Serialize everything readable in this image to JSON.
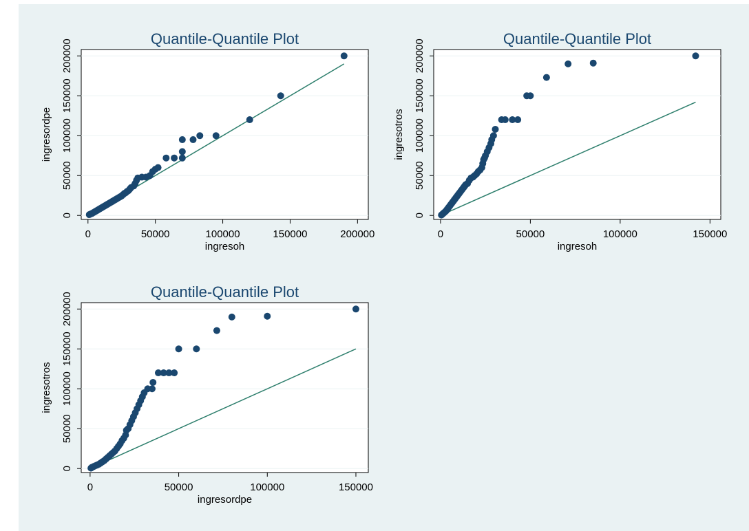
{
  "colors": {
    "background": "#eaf2f3",
    "plot_area": "#ffffff",
    "marker": "#1a476f",
    "reference_line": "#2e7f6d",
    "title": "#1a476f"
  },
  "chart_data": [
    {
      "type": "scatter",
      "title": "Quantile-Quantile Plot",
      "xlabel": "ingresoh",
      "ylabel": "ingresordpe",
      "xticks": [
        0,
        50000,
        100000,
        150000,
        200000
      ],
      "yticks": [
        0,
        50000,
        100000,
        150000,
        200000
      ],
      "xticklabels": [
        "0",
        "50000",
        "100000",
        "150000",
        "200000"
      ],
      "yticklabels": [
        "0",
        "50000",
        "100000",
        "150000",
        "200000"
      ],
      "xlim": [
        -5000,
        208000
      ],
      "ylim": [
        -5000,
        208000
      ],
      "grid": true,
      "reference_line": [
        [
          0,
          0
        ],
        [
          190000,
          190000
        ]
      ],
      "points": [
        [
          1000,
          1000
        ],
        [
          2000,
          1800
        ],
        [
          3000,
          2500
        ],
        [
          4000,
          3500
        ],
        [
          5000,
          4500
        ],
        [
          6000,
          5500
        ],
        [
          7000,
          6500
        ],
        [
          8000,
          7500
        ],
        [
          9000,
          8500
        ],
        [
          10000,
          9500
        ],
        [
          11000,
          10500
        ],
        [
          12000,
          11500
        ],
        [
          13000,
          12500
        ],
        [
          14000,
          13500
        ],
        [
          15000,
          14500
        ],
        [
          16000,
          15500
        ],
        [
          17000,
          16500
        ],
        [
          18000,
          17500
        ],
        [
          19000,
          18500
        ],
        [
          20000,
          19500
        ],
        [
          21000,
          20500
        ],
        [
          22000,
          21500
        ],
        [
          23000,
          22500
        ],
        [
          24000,
          23500
        ],
        [
          25000,
          24500
        ],
        [
          26000,
          26000
        ],
        [
          27000,
          27500
        ],
        [
          28000,
          28500
        ],
        [
          29000,
          30000
        ],
        [
          30000,
          31000
        ],
        [
          31000,
          33000
        ],
        [
          32000,
          35000
        ],
        [
          34000,
          37000
        ],
        [
          35000,
          40000
        ],
        [
          36000,
          44000
        ],
        [
          37000,
          47000
        ],
        [
          40000,
          48000
        ],
        [
          43000,
          48000
        ],
        [
          46000,
          50000
        ],
        [
          48000,
          55000
        ],
        [
          50000,
          58000
        ],
        [
          52000,
          60000
        ],
        [
          58000,
          72000
        ],
        [
          64000,
          72000
        ],
        [
          70000,
          72000
        ],
        [
          70000,
          80000
        ],
        [
          70000,
          95000
        ],
        [
          78000,
          95000
        ],
        [
          83000,
          100000
        ],
        [
          95000,
          100000
        ],
        [
          120000,
          120000
        ],
        [
          143000,
          150000
        ],
        [
          190000,
          200000
        ]
      ]
    },
    {
      "type": "scatter",
      "title": "Quantile-Quantile Plot",
      "xlabel": "ingresoh",
      "ylabel": "ingresotros",
      "xticks": [
        0,
        50000,
        100000,
        150000
      ],
      "yticks": [
        0,
        50000,
        100000,
        150000,
        200000
      ],
      "xticklabels": [
        "0",
        "50000",
        "100000",
        "150000"
      ],
      "yticklabels": [
        "0",
        "50000",
        "100000",
        "150000",
        "200000"
      ],
      "xlim": [
        -3800,
        156000
      ],
      "ylim": [
        -5000,
        208000
      ],
      "grid": true,
      "reference_line": [
        [
          0,
          0
        ],
        [
          142000,
          142000
        ]
      ],
      "points": [
        [
          500,
          500
        ],
        [
          1000,
          1500
        ],
        [
          1500,
          2500
        ],
        [
          2000,
          3500
        ],
        [
          2500,
          4500
        ],
        [
          3000,
          5500
        ],
        [
          3500,
          7000
        ],
        [
          4000,
          8500
        ],
        [
          4500,
          10000
        ],
        [
          5000,
          11500
        ],
        [
          5500,
          13000
        ],
        [
          6000,
          14500
        ],
        [
          6500,
          16000
        ],
        [
          7000,
          17500
        ],
        [
          7500,
          19000
        ],
        [
          8000,
          20500
        ],
        [
          8500,
          22000
        ],
        [
          9000,
          23500
        ],
        [
          9500,
          25000
        ],
        [
          10000,
          26500
        ],
        [
          10500,
          28000
        ],
        [
          11000,
          29500
        ],
        [
          11500,
          31000
        ],
        [
          12000,
          32500
        ],
        [
          12500,
          34000
        ],
        [
          13000,
          35500
        ],
        [
          13500,
          37000
        ],
        [
          14000,
          38500
        ],
        [
          15000,
          40000
        ],
        [
          16000,
          44000
        ],
        [
          17000,
          47000
        ],
        [
          18000,
          48000
        ],
        [
          19000,
          50000
        ],
        [
          20000,
          52000
        ],
        [
          21000,
          55000
        ],
        [
          22000,
          57000
        ],
        [
          23000,
          60000
        ],
        [
          23500,
          65000
        ],
        [
          24000,
          70000
        ],
        [
          24500,
          72000
        ],
        [
          25000,
          75000
        ],
        [
          26000,
          80000
        ],
        [
          27000,
          85000
        ],
        [
          28000,
          90000
        ],
        [
          28500,
          95000
        ],
        [
          29500,
          100000
        ],
        [
          30500,
          108000
        ],
        [
          34000,
          120000
        ],
        [
          36000,
          120000
        ],
        [
          40000,
          120000
        ],
        [
          43000,
          120000
        ],
        [
          48000,
          150000
        ],
        [
          50000,
          150000
        ],
        [
          59000,
          173000
        ],
        [
          71000,
          190000
        ],
        [
          85000,
          191000
        ],
        [
          142000,
          200000
        ]
      ]
    },
    {
      "type": "scatter",
      "title": "Quantile-Quantile Plot",
      "xlabel": "ingresordpe",
      "ylabel": "ingresotros",
      "xticks": [
        0,
        50000,
        100000,
        150000
      ],
      "yticks": [
        0,
        50000,
        100000,
        150000,
        200000
      ],
      "xticklabels": [
        "0",
        "50000",
        "100000",
        "150000"
      ],
      "yticklabels": [
        "0",
        "50000",
        "100000",
        "150000",
        "200000"
      ],
      "xlim": [
        -5000,
        157000
      ],
      "ylim": [
        -5000,
        208000
      ],
      "grid": true,
      "reference_line": [
        [
          0,
          0
        ],
        [
          150000,
          150000
        ]
      ],
      "points": [
        [
          500,
          500
        ],
        [
          1000,
          1500
        ],
        [
          2000,
          2500
        ],
        [
          3000,
          3500
        ],
        [
          4000,
          4500
        ],
        [
          5000,
          5500
        ],
        [
          6000,
          7000
        ],
        [
          7000,
          8500
        ],
        [
          8000,
          10000
        ],
        [
          9000,
          12000
        ],
        [
          10000,
          14000
        ],
        [
          11000,
          16000
        ],
        [
          12000,
          18000
        ],
        [
          13000,
          20000
        ],
        [
          14000,
          22000
        ],
        [
          15000,
          25000
        ],
        [
          16000,
          28000
        ],
        [
          17000,
          31000
        ],
        [
          18000,
          35000
        ],
        [
          19000,
          38000
        ],
        [
          20000,
          42000
        ],
        [
          20500,
          48000
        ],
        [
          21500,
          50000
        ],
        [
          22500,
          55000
        ],
        [
          23500,
          60000
        ],
        [
          24500,
          65000
        ],
        [
          25500,
          70000
        ],
        [
          26500,
          75000
        ],
        [
          27500,
          80000
        ],
        [
          28500,
          85000
        ],
        [
          29500,
          90000
        ],
        [
          30500,
          95000
        ],
        [
          32500,
          100000
        ],
        [
          35000,
          100000
        ],
        [
          35500,
          108000
        ],
        [
          38500,
          120000
        ],
        [
          41500,
          120000
        ],
        [
          44500,
          120000
        ],
        [
          47500,
          120000
        ],
        [
          50000,
          150000
        ],
        [
          60000,
          150000
        ],
        [
          71500,
          173000
        ],
        [
          80000,
          190000
        ],
        [
          100000,
          191000
        ],
        [
          150000,
          200000
        ]
      ]
    }
  ]
}
